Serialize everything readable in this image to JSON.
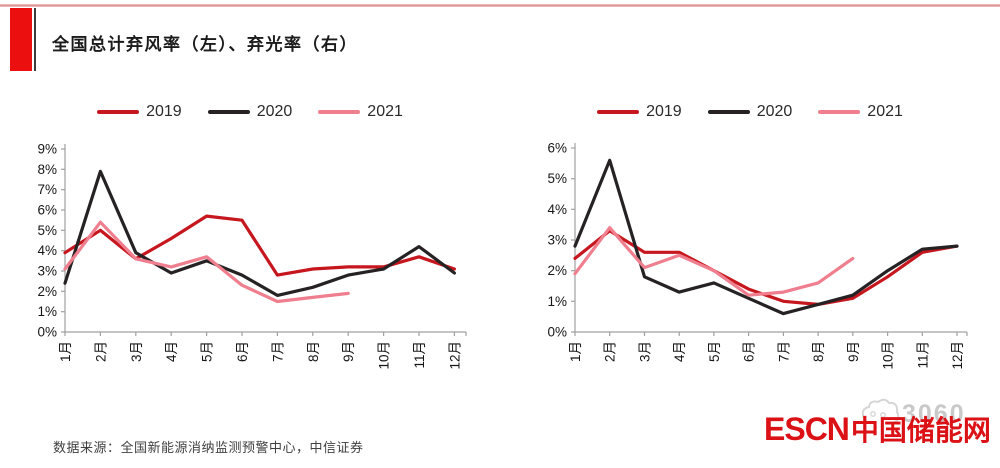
{
  "header": {
    "title": "全国总计弃风率（左）、弃光率（右）"
  },
  "chart_data": [
    {
      "type": "line",
      "label": "弃风率（左）",
      "position": "left",
      "categories": [
        "1月",
        "2月",
        "3月",
        "4月",
        "5月",
        "6月",
        "7月",
        "8月",
        "9月",
        "10月",
        "11月",
        "12月"
      ],
      "ylim": [
        0,
        9
      ],
      "ytick_step": 1,
      "ytick_format": "percent",
      "grid": false,
      "legend_position": "top",
      "series": [
        {
          "name": "2019",
          "color": "#c6161e",
          "values": [
            3.9,
            5.0,
            3.6,
            4.6,
            5.7,
            5.5,
            2.8,
            3.1,
            3.2,
            3.2,
            3.7,
            3.1
          ]
        },
        {
          "name": "2020",
          "color": "#262223",
          "values": [
            2.4,
            7.9,
            3.9,
            2.9,
            3.5,
            2.8,
            1.8,
            2.2,
            2.8,
            3.1,
            4.2,
            2.9
          ]
        },
        {
          "name": "2021",
          "color": "#ef7f8e",
          "values": [
            3.1,
            5.4,
            3.6,
            3.2,
            3.7,
            2.3,
            1.5,
            1.7,
            1.9,
            null,
            null,
            null
          ]
        }
      ]
    },
    {
      "type": "line",
      "label": "弃光率（右）",
      "position": "right",
      "categories": [
        "1月",
        "2月",
        "3月",
        "4月",
        "5月",
        "6月",
        "7月",
        "8月",
        "9月",
        "10月",
        "11月",
        "12月"
      ],
      "ylim": [
        0,
        6
      ],
      "ytick_step": 1,
      "ytick_format": "percent",
      "grid": false,
      "legend_position": "top",
      "series": [
        {
          "name": "2019",
          "color": "#c6161e",
          "values": [
            2.4,
            3.3,
            2.6,
            2.6,
            2.0,
            1.4,
            1.0,
            0.9,
            1.1,
            1.8,
            2.6,
            2.8
          ]
        },
        {
          "name": "2020",
          "color": "#262223",
          "values": [
            2.8,
            5.6,
            1.8,
            1.3,
            1.6,
            1.1,
            0.6,
            0.9,
            1.2,
            2.0,
            2.7,
            2.8
          ]
        },
        {
          "name": "2021",
          "color": "#ef7f8e",
          "values": [
            1.9,
            3.4,
            2.1,
            2.5,
            2.0,
            1.2,
            1.3,
            1.6,
            2.4,
            null,
            null,
            null
          ]
        }
      ]
    }
  ],
  "footer": {
    "source_note": "数据来源：全国新能源消纳监测预警中心，中信证券",
    "watermark": "3060",
    "logo_latin": "ESCN",
    "logo_cn": "中国储能网"
  },
  "colors": {
    "accent_red": "#ec0f10",
    "logo_red": "#db1116",
    "axis_gray": "#a0a0a0",
    "series_2019": "#c6161e",
    "series_2020": "#262223",
    "series_2021": "#ef7f8e"
  }
}
